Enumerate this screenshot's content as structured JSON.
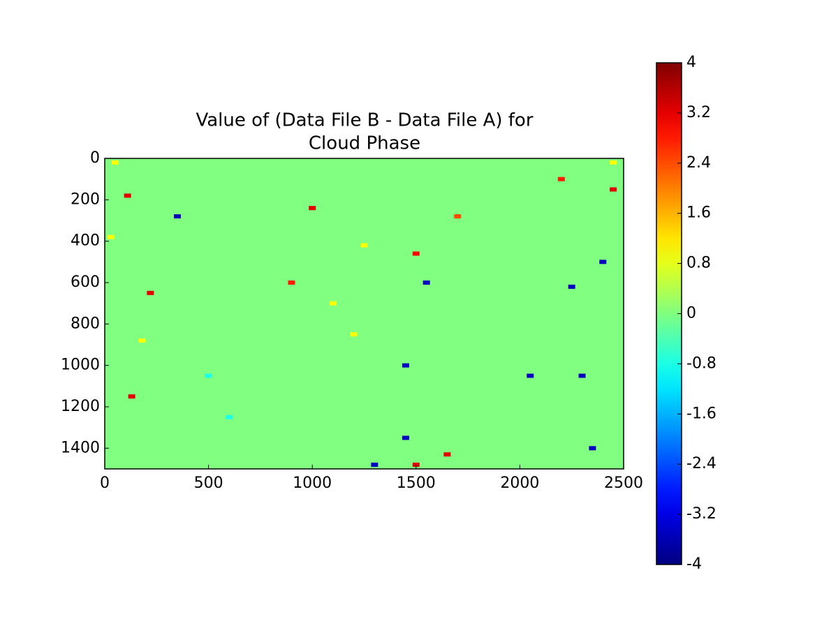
{
  "chart_data": {
    "type": "heatmap",
    "title": [
      "Value of (Data File B - Data File A) for",
      "Cloud Phase"
    ],
    "xlim": [
      0,
      2500
    ],
    "xticks": [
      0,
      500,
      1000,
      1500,
      2000,
      2500
    ],
    "ylim": [
      1500,
      0
    ],
    "yticks": [
      0,
      200,
      400,
      600,
      800,
      1000,
      1200,
      1400
    ],
    "colormap": "jet",
    "clim": [
      -4,
      4
    ],
    "cticks": [
      -4,
      -3.2,
      -2.4,
      -1.6,
      -0.8,
      0,
      0.8,
      1.6,
      2.4,
      3.2,
      4
    ],
    "background": 0,
    "x": [
      110,
      50,
      30,
      180,
      1000,
      1500,
      2400,
      2300,
      1450,
      1300,
      1250,
      1200,
      2450,
      2200,
      350,
      2050,
      1650,
      1500,
      500,
      130,
      1450,
      2450,
      900,
      1700,
      2350,
      1100,
      600,
      2250,
      1550,
      220
    ],
    "y": [
      180,
      20,
      380,
      880,
      240,
      460,
      500,
      1050,
      1350,
      1480,
      420,
      850,
      150,
      100,
      280,
      1050,
      1430,
      1480,
      1050,
      1150,
      1000,
      20,
      600,
      280,
      1400,
      700,
      1250,
      620,
      600,
      650
    ],
    "values": [
      3.2,
      1.0,
      1.0,
      1.0,
      3.2,
      3.0,
      -3.5,
      -3.5,
      -3.5,
      -3.5,
      1.0,
      1.0,
      3.2,
      2.8,
      -3.5,
      -3.5,
      3.2,
      3.2,
      -0.8,
      3.2,
      -3.5,
      1.0,
      2.8,
      2.4,
      -3.5,
      1.0,
      -0.8,
      -3.5,
      -3.5,
      3.2
    ]
  }
}
